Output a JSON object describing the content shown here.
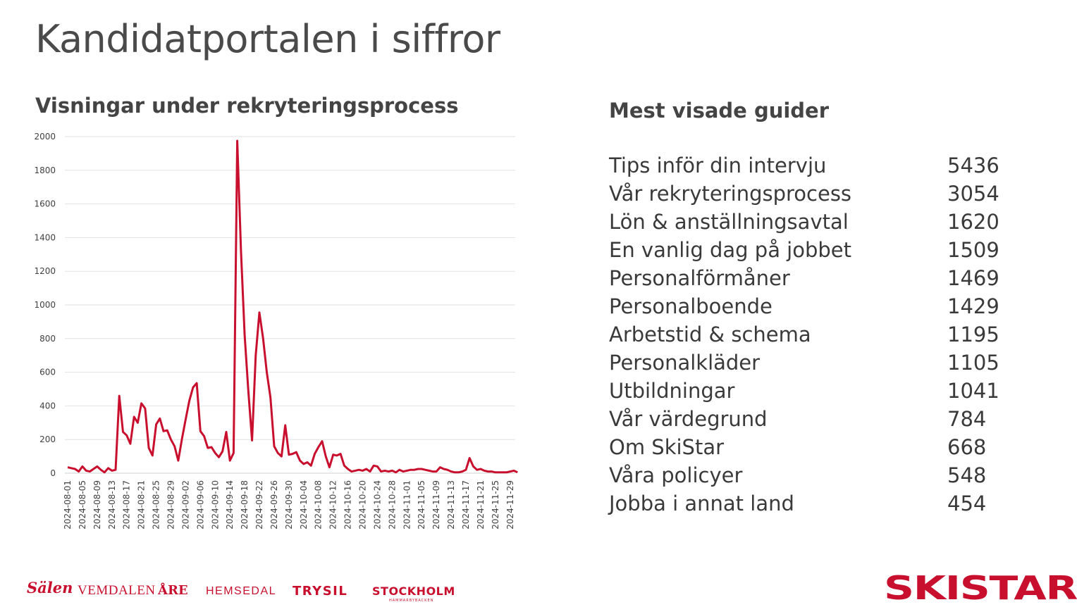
{
  "page": {
    "title": "Kandidatportalen i siffror"
  },
  "chart_data": {
    "type": "line",
    "title": "Visningar under rekryteringsprocess",
    "xlabel": "",
    "ylabel": "",
    "ylim": [
      0,
      2000
    ],
    "yticks": [
      0,
      200,
      400,
      600,
      800,
      1000,
      1200,
      1400,
      1600,
      1800,
      2000
    ],
    "grid": true,
    "x_tick_labels": [
      "2024-08-01",
      "2024-08-05",
      "2024-08-09",
      "2024-08-13",
      "2024-08-17",
      "2024-08-21",
      "2024-08-25",
      "2024-08-29",
      "2024-09-02",
      "2024-09-06",
      "2024-09-10",
      "2024-09-14",
      "2024-09-18",
      "2024-09-22",
      "2024-09-26",
      "2024-09-30",
      "2024-10-04",
      "2024-10-08",
      "2024-10-12",
      "2024-10-16",
      "2024-10-20",
      "2024-10-24",
      "2024-10-28",
      "2024-11-01",
      "2024-11-05",
      "2024-11-09",
      "2024-11-13",
      "2024-11-17",
      "2024-11-21",
      "2024-11-25",
      "2024-11-29"
    ],
    "line_color": "#c8102e",
    "series": [
      {
        "x_start": "2024-08-01",
        "x_end": "2024-11-30",
        "values": [
          35,
          30,
          25,
          10,
          40,
          15,
          10,
          25,
          40,
          20,
          5,
          30,
          15,
          20,
          460,
          245,
          225,
          175,
          335,
          300,
          415,
          385,
          150,
          105,
          290,
          325,
          250,
          255,
          200,
          160,
          75,
          205,
          320,
          430,
          510,
          535,
          250,
          220,
          150,
          155,
          120,
          95,
          130,
          245,
          75,
          120,
          1975,
          1320,
          820,
          490,
          195,
          700,
          955,
          800,
          600,
          450,
          160,
          120,
          100,
          285,
          110,
          115,
          125,
          75,
          55,
          65,
          45,
          115,
          155,
          190,
          100,
          35,
          110,
          105,
          115,
          45,
          25,
          10,
          15,
          20,
          15,
          25,
          10,
          45,
          40,
          10,
          15,
          10,
          15,
          5,
          20,
          10,
          15,
          20,
          20,
          25,
          25,
          20,
          15,
          10,
          10,
          35,
          25,
          20,
          10,
          5,
          5,
          10,
          20,
          90,
          40,
          20,
          25,
          15,
          10,
          10,
          5,
          5,
          5,
          5,
          10,
          15,
          5
        ]
      }
    ]
  },
  "guides": {
    "title": "Mest visade guider",
    "items": [
      {
        "label": "Tips inför din intervju",
        "value": "5436"
      },
      {
        "label": "Vår rekryteringsprocess",
        "value": "3054"
      },
      {
        "label": "Lön & anställningsavtal",
        "value": "1620"
      },
      {
        "label": "En vanlig dag på jobbet",
        "value": "1509"
      },
      {
        "label": "Personalförmåner",
        "value": "1469"
      },
      {
        "label": "Personalboende",
        "value": "1429"
      },
      {
        "label": "Arbetstid & schema",
        "value": "1195"
      },
      {
        "label": "Personalkläder",
        "value": "1105"
      },
      {
        "label": "Utbildningar",
        "value": "1041"
      },
      {
        "label": "Vår värdegrund",
        "value": "784"
      },
      {
        "label": "Om SkiStar",
        "value": "668"
      },
      {
        "label": "Våra policyer",
        "value": "548"
      },
      {
        "label": "Jobba i annat land",
        "value": "454"
      }
    ]
  },
  "footer": {
    "destinations": [
      "Sälen",
      "VEMDALEN",
      "ÅRE",
      "HEMSEDAL",
      "TRYSIL",
      "STOCKHOLM"
    ],
    "stockholm_sub": "HAMMARBYBACKEN",
    "brand": "SKISTAR",
    "brand_color": "#c8102e"
  }
}
